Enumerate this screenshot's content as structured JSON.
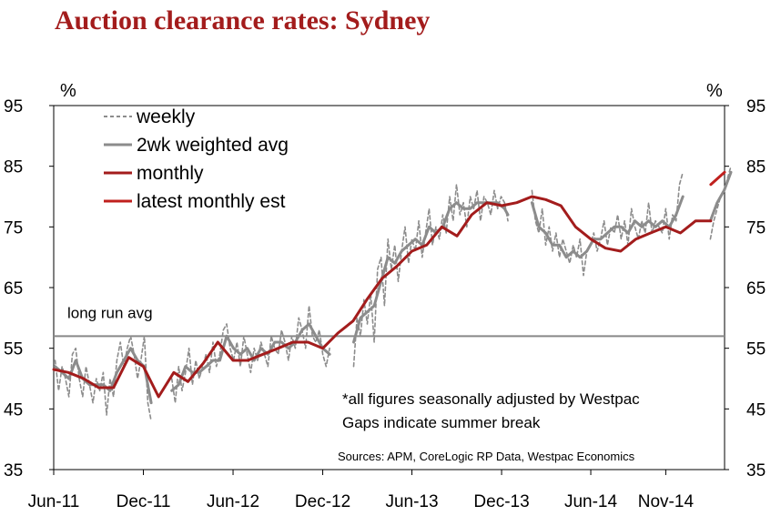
{
  "chart_data": {
    "type": "line",
    "title": "Auction clearance rates: Sydney",
    "ylabel_left": "%",
    "ylabel_right": "%",
    "ylim": [
      35,
      95
    ],
    "yticks": [
      "95",
      "85",
      "75",
      "65",
      "55",
      "45",
      "35"
    ],
    "xticks": [
      "Jun-11",
      "Dec-11",
      "Jun-12",
      "Dec-12",
      "Jun-13",
      "Dec-13",
      "Jun-14",
      "Nov-14"
    ],
    "xtick_dates": [
      "2011-06",
      "2011-12",
      "2012-06",
      "2012-12",
      "2013-06",
      "2013-12",
      "2014-06",
      "2014-11"
    ],
    "x_range": [
      "2011-06",
      "2015-03"
    ],
    "grid": false,
    "legend_position": "top-left",
    "reference_line": {
      "label": "long run avg",
      "value": 57
    },
    "annotations": [
      "*all figures seasonally adjusted by Westpac",
      "Gaps indicate summer break",
      "Sources: APM, CoreLogic  RP Data, Westpac Economics"
    ],
    "series": [
      {
        "name": "weekly",
        "color": "#8c8c8c",
        "style": "dashed",
        "segments": [
          {
            "x": [
              "2011-06-04",
              "2011-06-11",
              "2011-06-18",
              "2011-06-25",
              "2011-07-02",
              "2011-07-09",
              "2011-07-16",
              "2011-07-23",
              "2011-07-30",
              "2011-08-06",
              "2011-08-13",
              "2011-08-20",
              "2011-08-27",
              "2011-09-03",
              "2011-09-10",
              "2011-09-17",
              "2011-09-24",
              "2011-10-01",
              "2011-10-08",
              "2011-10-15",
              "2011-10-22",
              "2011-10-29",
              "2011-11-05",
              "2011-11-12",
              "2011-11-19",
              "2011-11-26",
              "2011-12-03",
              "2011-12-10",
              "2011-12-17"
            ],
            "y": [
              53,
              48,
              52,
              50,
              47,
              54,
              55,
              50,
              47,
              52,
              49,
              46,
              50,
              48,
              51,
              44,
              50,
              47,
              53,
              56,
              52,
              55,
              57,
              54,
              50,
              53,
              57,
              46,
              43
            ]
          },
          {
            "x": [
              "2012-01-28",
              "2012-02-04",
              "2012-02-11",
              "2012-02-18",
              "2012-02-25",
              "2012-03-03",
              "2012-03-10",
              "2012-03-17",
              "2012-03-24",
              "2012-03-31",
              "2012-04-07",
              "2012-04-14",
              "2012-04-21",
              "2012-04-28",
              "2012-05-05",
              "2012-05-12",
              "2012-05-19",
              "2012-05-26",
              "2012-06-02",
              "2012-06-09",
              "2012-06-16",
              "2012-06-23",
              "2012-06-30",
              "2012-07-07",
              "2012-07-14",
              "2012-07-21",
              "2012-07-28",
              "2012-08-04",
              "2012-08-11",
              "2012-08-18",
              "2012-08-25",
              "2012-09-01",
              "2012-09-08",
              "2012-09-15",
              "2012-09-22",
              "2012-09-29",
              "2012-10-06",
              "2012-10-13",
              "2012-10-20",
              "2012-10-27",
              "2012-11-03",
              "2012-11-10",
              "2012-11-17",
              "2012-11-24",
              "2012-12-01",
              "2012-12-08",
              "2012-12-15"
            ],
            "y": [
              50,
              46,
              52,
              48,
              51,
              55,
              49,
              53,
              50,
              52,
              54,
              51,
              56,
              52,
              54,
              58,
              59,
              55,
              53,
              56,
              52,
              57,
              54,
              51,
              55,
              53,
              56,
              54,
              52,
              57,
              55,
              54,
              58,
              56,
              53,
              57,
              55,
              60,
              58,
              55,
              62,
              57,
              56,
              58,
              54,
              52,
              55
            ]
          },
          {
            "x": [
              "2013-02-02",
              "2013-02-09",
              "2013-02-16",
              "2013-02-23",
              "2013-03-02",
              "2013-03-09",
              "2013-03-16",
              "2013-03-23",
              "2013-03-30",
              "2013-04-06",
              "2013-04-13",
              "2013-04-20",
              "2013-04-27",
              "2013-05-04",
              "2013-05-11",
              "2013-05-18",
              "2013-05-25",
              "2013-06-01",
              "2013-06-08",
              "2013-06-15",
              "2013-06-22",
              "2013-06-29",
              "2013-07-06",
              "2013-07-13",
              "2013-07-20",
              "2013-07-27",
              "2013-08-03",
              "2013-08-10",
              "2013-08-17",
              "2013-08-24",
              "2013-08-31",
              "2013-09-07",
              "2013-09-14",
              "2013-09-21",
              "2013-09-28",
              "2013-10-05",
              "2013-10-12",
              "2013-10-19",
              "2013-10-26",
              "2013-11-02",
              "2013-11-09",
              "2013-11-16",
              "2013-11-23",
              "2013-11-30",
              "2013-12-07",
              "2013-12-14"
            ],
            "y": [
              52,
              60,
              57,
              63,
              59,
              64,
              56,
              68,
              70,
              62,
              73,
              68,
              72,
              66,
              71,
              75,
              69,
              73,
              71,
              76,
              70,
              74,
              78,
              72,
              75,
              73,
              77,
              74,
              80,
              76,
              82,
              77,
              79,
              75,
              80,
              78,
              81,
              76,
              80,
              79,
              77,
              81,
              78,
              80,
              79,
              76
            ]
          },
          {
            "x": [
              "2014-02-01",
              "2014-02-08",
              "2014-02-15",
              "2014-02-22",
              "2014-03-01",
              "2014-03-08",
              "2014-03-15",
              "2014-03-22",
              "2014-03-29",
              "2014-04-05",
              "2014-04-12",
              "2014-04-19",
              "2014-04-26",
              "2014-05-03",
              "2014-05-10",
              "2014-05-17",
              "2014-05-24",
              "2014-05-31",
              "2014-06-07",
              "2014-06-14",
              "2014-06-21",
              "2014-06-28",
              "2014-07-05",
              "2014-07-12",
              "2014-07-19",
              "2014-07-26",
              "2014-08-02",
              "2014-08-09",
              "2014-08-16",
              "2014-08-23",
              "2014-08-30",
              "2014-09-06",
              "2014-09-13",
              "2014-09-20",
              "2014-09-27",
              "2014-10-04",
              "2014-10-11",
              "2014-10-18",
              "2014-10-25",
              "2014-11-01",
              "2014-11-08",
              "2014-11-15",
              "2014-11-22",
              "2014-11-29",
              "2014-12-06"
            ],
            "y": [
              81,
              76,
              74,
              78,
              72,
              75,
              71,
              74,
              70,
              73,
              71,
              69,
              72,
              70,
              73,
              67,
              71,
              72,
              74,
              71,
              73,
              76,
              72,
              75,
              74,
              77,
              73,
              76,
              72,
              78,
              75,
              73,
              76,
              74,
              79,
              74,
              76,
              75,
              74,
              78,
              73,
              77,
              76,
              82,
              84
            ]
          },
          {
            "x": [
              "2015-01-31",
              "2015-02-07",
              "2015-02-14",
              "2015-02-21",
              "2015-02-28",
              "2015-03-07",
              "2015-03-14"
            ],
            "y": [
              73,
              76,
              78,
              80,
              81,
              83,
              85
            ]
          }
        ]
      },
      {
        "name": "2wk weighted avg",
        "color": "#8c8c8c",
        "style": "solid",
        "segments": [
          {
            "x": [
              "2011-06-04",
              "2011-06-18",
              "2011-07-02",
              "2011-07-16",
              "2011-07-30",
              "2011-08-13",
              "2011-08-27",
              "2011-09-10",
              "2011-09-24",
              "2011-10-08",
              "2011-10-22",
              "2011-11-05",
              "2011-11-19",
              "2011-12-03",
              "2011-12-17"
            ],
            "y": [
              52,
              51,
              50,
              53,
              50,
              49,
              49,
              49,
              48,
              51,
              53,
              55,
              53,
              52,
              46
            ]
          },
          {
            "x": [
              "2012-01-28",
              "2012-02-11",
              "2012-02-25",
              "2012-03-10",
              "2012-03-24",
              "2012-04-07",
              "2012-04-21",
              "2012-05-05",
              "2012-05-19",
              "2012-06-02",
              "2012-06-16",
              "2012-06-30",
              "2012-07-14",
              "2012-07-28",
              "2012-08-11",
              "2012-08-25",
              "2012-09-08",
              "2012-09-22",
              "2012-10-06",
              "2012-10-20",
              "2012-11-03",
              "2012-11-17",
              "2012-12-01",
              "2012-12-15"
            ],
            "y": [
              48,
              49,
              52,
              51,
              51,
              52,
              53,
              53,
              57,
              55,
              54,
              55,
              53,
              55,
              54,
              56,
              56,
              55,
              56,
              58,
              59,
              57,
              55,
              54
            ]
          },
          {
            "x": [
              "2013-02-02",
              "2013-02-16",
              "2013-03-02",
              "2013-03-16",
              "2013-03-30",
              "2013-04-13",
              "2013-04-27",
              "2013-05-11",
              "2013-05-25",
              "2013-06-08",
              "2013-06-22",
              "2013-07-06",
              "2013-07-20",
              "2013-08-03",
              "2013-08-17",
              "2013-08-31",
              "2013-09-14",
              "2013-09-28",
              "2013-10-12",
              "2013-10-26",
              "2013-11-09",
              "2013-11-23",
              "2013-12-07",
              "2013-12-14"
            ],
            "y": [
              56,
              60,
              61,
              62,
              66,
              70,
              69,
              71,
              72,
              73,
              72,
              75,
              74,
              75,
              78,
              79,
              78,
              78,
              79,
              79,
              79,
              79,
              78,
              77
            ]
          },
          {
            "x": [
              "2014-02-01",
              "2014-02-15",
              "2014-03-01",
              "2014-03-15",
              "2014-03-29",
              "2014-04-12",
              "2014-04-26",
              "2014-05-10",
              "2014-05-24",
              "2014-06-07",
              "2014-06-21",
              "2014-07-05",
              "2014-07-19",
              "2014-08-02",
              "2014-08-16",
              "2014-08-30",
              "2014-09-13",
              "2014-09-27",
              "2014-10-11",
              "2014-10-25",
              "2014-11-08",
              "2014-11-22",
              "2014-12-06"
            ],
            "y": [
              79,
              75,
              74,
              72,
              72,
              70,
              71,
              70,
              71,
              73,
              73,
              74,
              75,
              75,
              74,
              76,
              75,
              76,
              75,
              76,
              75,
              77,
              80
            ]
          },
          {
            "x": [
              "2015-01-31",
              "2015-02-14",
              "2015-02-28",
              "2015-03-14"
            ],
            "y": [
              76,
              79,
              81,
              84
            ]
          }
        ]
      },
      {
        "name": "monthly",
        "color": "#a31c1c",
        "style": "solid",
        "x": [
          "2011-06-01",
          "2011-07-01",
          "2011-08-01",
          "2011-09-01",
          "2011-10-01",
          "2011-11-01",
          "2011-12-01",
          "2012-01-01",
          "2012-02-01",
          "2012-03-01",
          "2012-04-01",
          "2012-05-01",
          "2012-06-01",
          "2012-07-01",
          "2012-08-01",
          "2012-09-01",
          "2012-10-01",
          "2012-11-01",
          "2012-12-01",
          "2013-01-01",
          "2013-02-01",
          "2013-03-01",
          "2013-04-01",
          "2013-05-01",
          "2013-06-01",
          "2013-07-01",
          "2013-08-01",
          "2013-09-01",
          "2013-10-01",
          "2013-11-01",
          "2013-12-01",
          "2014-01-01",
          "2014-02-01",
          "2014-03-01",
          "2014-04-01",
          "2014-05-01",
          "2014-06-01",
          "2014-07-01",
          "2014-08-01",
          "2014-09-01",
          "2014-10-01",
          "2014-11-01",
          "2014-12-01",
          "2015-01-01",
          "2015-02-01"
        ],
        "y": [
          51.5,
          51,
          50,
          48.5,
          48.5,
          53.5,
          52,
          47,
          51,
          49.5,
          52.5,
          56,
          53,
          53,
          54,
          55,
          56,
          56,
          55,
          57.5,
          59.5,
          63,
          66.5,
          68.5,
          71,
          72,
          75,
          73.5,
          77,
          79,
          78.5,
          79,
          80,
          79.5,
          78.5,
          75,
          73,
          71.5,
          71,
          73,
          74,
          75,
          74,
          76,
          76
        ]
      },
      {
        "name": "latest monthly est",
        "color": "#c0201e",
        "style": "solid",
        "x": [
          "2015-02-01",
          "2015-03-01"
        ],
        "y": [
          82,
          84
        ]
      }
    ]
  }
}
